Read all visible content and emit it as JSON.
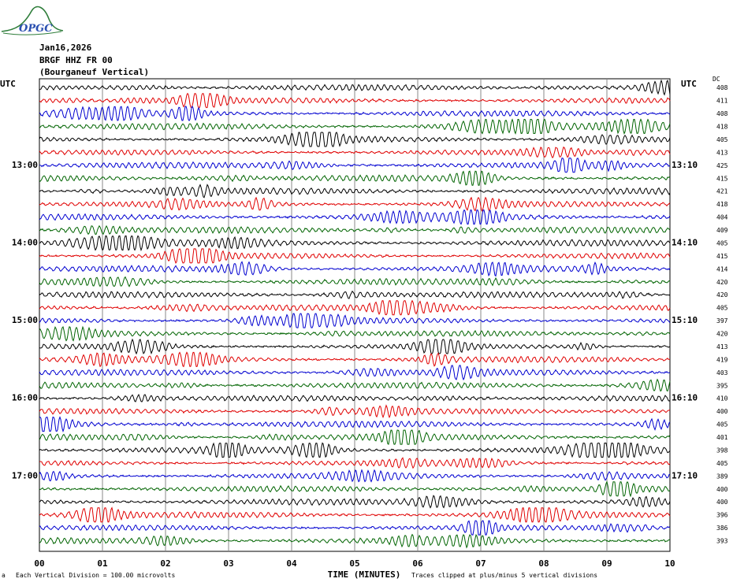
{
  "logo": {
    "text": "OPGC",
    "color": "#2e7d3a",
    "text_color": "#2a4fb0"
  },
  "header": {
    "date": "Jan16,2026",
    "station": "BRGF HHZ FR 00",
    "location": "(Bourganeuf Vertical)"
  },
  "axis": {
    "left_unit": "UTC",
    "right_unit": "UTC",
    "dc_label": "DC",
    "xlabel": "TIME (MINUTES)"
  },
  "footer": {
    "scale_note": "Each Vertical Division = 100.00 microvolts",
    "clip_note": "Traces clipped at plus/minus 5 vertical divisions",
    "corner_mark": "a"
  },
  "chart_data": {
    "type": "line",
    "title": "",
    "xlabel": "TIME (MINUTES)",
    "ylabel": "",
    "xlim": [
      0,
      10
    ],
    "x_ticks": [
      "00",
      "01",
      "02",
      "03",
      "04",
      "05",
      "06",
      "07",
      "08",
      "09",
      "10"
    ],
    "grid": true,
    "trace_colors": [
      "#000000",
      "#e00000",
      "#0000d0",
      "#006400"
    ],
    "left_hour_labels": [
      "13:00",
      "14:00",
      "15:00",
      "16:00",
      "17:00"
    ],
    "right_hour_labels": [
      "13:10",
      "14:10",
      "15:10",
      "16:10",
      "17:10"
    ],
    "dc_offsets": [
      "408",
      "411",
      "408",
      "418",
      "405",
      "413",
      "425",
      "415",
      "421",
      "418",
      "404",
      "409",
      "405",
      "415",
      "414",
      "420",
      "420",
      "405",
      "397",
      "420",
      "413",
      "419",
      "403",
      "395",
      "410",
      "400",
      "405",
      "401",
      "398",
      "405",
      "389",
      "400",
      "400",
      "396",
      "386",
      "393"
    ]
  }
}
